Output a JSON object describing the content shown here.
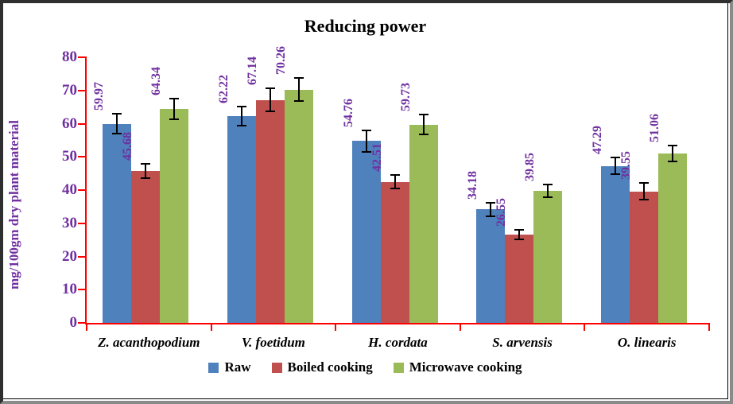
{
  "chart_data": {
    "type": "bar",
    "title": "Reducing power",
    "ylabel": "mg/100gm dry plant material",
    "xlabel": "",
    "categories": [
      "Z. acanthopodium",
      "V. foetidum",
      "H. cordata",
      "S. arvensis",
      "O. linearis"
    ],
    "series": [
      {
        "name": "Raw",
        "color": "#4F81BD",
        "values": [
          59.97,
          62.22,
          54.76,
          34.18,
          47.29
        ],
        "errors": [
          3.0,
          2.9,
          3.2,
          2.0,
          2.6
        ]
      },
      {
        "name": "Boiled cooking",
        "color": "#C0504D",
        "values": [
          45.68,
          67.14,
          42.51,
          26.55,
          39.55
        ],
        "errors": [
          2.2,
          3.4,
          2.0,
          1.5,
          2.5
        ]
      },
      {
        "name": "Microwave cooking",
        "color": "#9BBB59",
        "values": [
          64.34,
          70.26,
          59.73,
          39.85,
          51.06
        ],
        "errors": [
          3.1,
          3.5,
          3.0,
          1.9,
          2.4
        ]
      }
    ],
    "ylim": [
      0,
      80
    ],
    "yticks": [
      0,
      10,
      20,
      30,
      40,
      50,
      60,
      70,
      80
    ],
    "grid": false,
    "legend_position": "bottom",
    "data_labels_rotated": true,
    "error_bars": true,
    "colors": {
      "axis": "#FF0000",
      "axis_tick_text": "#7030A0",
      "data_label_text": "#7030A0",
      "y_axis_title_text": "#7030A0",
      "title_text": "#000000",
      "category_text": "#000000",
      "error_bar": "#000000"
    }
  }
}
